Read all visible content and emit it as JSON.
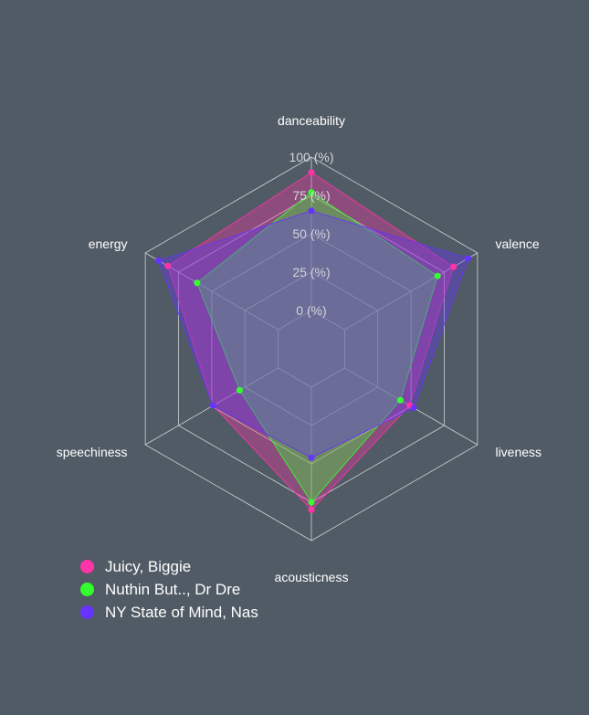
{
  "chart_data": {
    "type": "radar",
    "axes": [
      "danceability",
      "valence",
      "liveness",
      "acousticness",
      "speechiness",
      "energy"
    ],
    "tick_labels": [
      "0 (%)",
      "25 (%)",
      "50 (%)",
      "75 (%)",
      "100 (%)"
    ],
    "tick_values": [
      0,
      25,
      50,
      75,
      100
    ],
    "range": [
      0,
      100
    ],
    "series": [
      {
        "name": "Juicy, Biggie",
        "color": "#ff33a8",
        "values": [
          90,
          82,
          49,
          80,
          49,
          83
        ]
      },
      {
        "name": "Nuthin But.., Dr Dre",
        "color": "#33ff2e",
        "values": [
          77,
          70,
          42,
          75,
          29,
          61
        ]
      },
      {
        "name": "NY State of Mind, Nas",
        "color": "#6633ff",
        "values": [
          65,
          93,
          52,
          46,
          49,
          90
        ]
      }
    ],
    "legend_position": "bottom-left"
  }
}
